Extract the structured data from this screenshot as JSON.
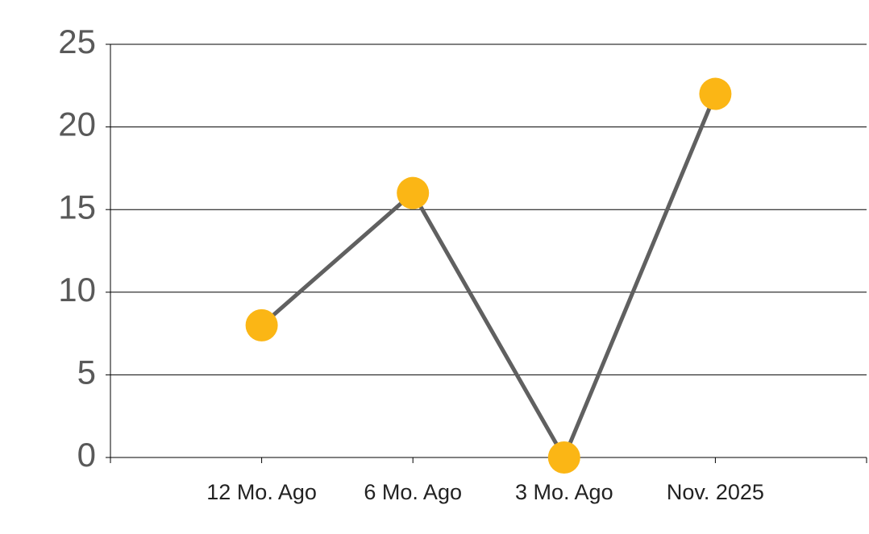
{
  "chart_data": {
    "type": "line",
    "categories": [
      "12 Mo. Ago",
      "6 Mo. Ago",
      "3 Mo. Ago",
      "Nov. 2025"
    ],
    "values": [
      8,
      16,
      0,
      22
    ],
    "line_color": "#606060",
    "marker_color": "#fbb615",
    "ylim": [
      0,
      25
    ],
    "yticks": [
      0,
      5,
      10,
      15,
      20,
      25
    ],
    "grid": true
  }
}
